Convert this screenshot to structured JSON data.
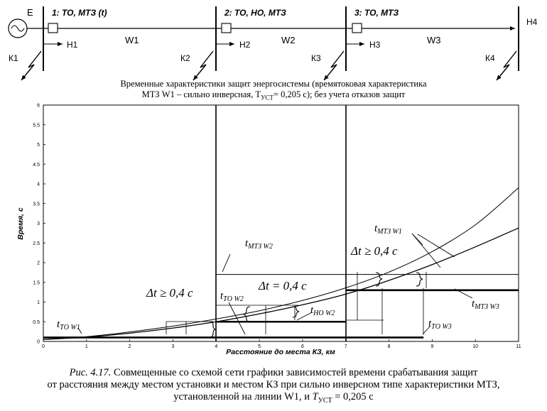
{
  "scheme": {
    "source_label": "E",
    "stations": [
      {
        "label": "1: ТО, МТЗ (t)",
        "load": "Н1"
      },
      {
        "label": "2: ТО, НО, МТЗ",
        "load": "Н2"
      },
      {
        "label": "3: ТО, МТЗ",
        "load": "Н3"
      }
    ],
    "end_load": "Н4",
    "lines": [
      "W1",
      "W2",
      "W3"
    ],
    "faults": [
      "К1",
      "К2",
      "К3",
      "К4"
    ]
  },
  "chart_title": {
    "line1": "Временные характеристики защит энергосистемы (времятоковая характеристика",
    "line2_a": "МТЗ W1 – сильно инверсная, T",
    "line2_sub": "УСТ",
    "line2_b": "= 0,205 с); без учета отказов защит"
  },
  "chart_data": {
    "type": "line",
    "xlabel": "Расстояние до места КЗ, км",
    "ylabel": "Время, с",
    "xlim": [
      0,
      11
    ],
    "ylim": [
      0,
      6
    ],
    "x_ticks": [
      "0",
      "1",
      "2",
      "3",
      "4",
      "5",
      "6",
      "7",
      "8",
      "9",
      "10",
      "11"
    ],
    "y_ticks": [
      "0",
      "0.5",
      "1",
      "1.5",
      "2",
      "2.5",
      "3",
      "3.5",
      "4",
      "4.5",
      "5",
      "5.5",
      "6"
    ],
    "grid": false,
    "station_boundaries": [
      4,
      7
    ],
    "series": [
      {
        "name": "t МТЗ W1",
        "x": [
          0,
          1,
          2,
          3,
          4,
          5,
          6,
          7,
          8,
          9,
          10,
          11
        ],
        "y": [
          0.05,
          0.12,
          0.24,
          0.39,
          0.57,
          0.78,
          1.04,
          1.36,
          1.76,
          2.28,
          2.96,
          3.9
        ]
      },
      {
        "name": "t МТЗ W2",
        "x": [
          0,
          1,
          2,
          3,
          4,
          5,
          6,
          7,
          8,
          9,
          10,
          11
        ],
        "y": [
          0.05,
          0.11,
          0.21,
          0.34,
          0.5,
          0.7,
          0.93,
          1.2,
          1.55,
          1.95,
          2.4,
          2.88
        ]
      },
      {
        "name": "t МТЗ W2",
        "x": [
          4,
          11
        ],
        "y": [
          1.7,
          1.7
        ]
      },
      {
        "name": "t МТЗ W3",
        "x": [
          7,
          11
        ],
        "y": [
          1.3,
          1.3
        ]
      },
      {
        "name": "t ТО W1",
        "x": [
          0,
          4
        ],
        "y": [
          0.1,
          0.1
        ]
      },
      {
        "name": "t ТО W2",
        "x": [
          4,
          7
        ],
        "y": [
          0.1,
          0.1
        ]
      },
      {
        "name": "t НО W2",
        "x": [
          4,
          7
        ],
        "y": [
          0.5,
          0.5
        ]
      },
      {
        "name": "t ТО W3",
        "x": [
          7,
          8.8
        ],
        "y": [
          0.1,
          0.1
        ]
      }
    ],
    "annotations": {
      "dt1": "Δt ≥ 0,4 с",
      "dt2": "Δt = 0,4 с",
      "dt3": "Δt ≥ 0,4 с",
      "t_mtz_w1": {
        "t": "t",
        "sub": "МТЗ W1"
      },
      "t_mtz_w2": {
        "t": "t",
        "sub": "МТЗ W2"
      },
      "t_mtz_w3": {
        "t": "t",
        "sub": "МТЗ W3"
      },
      "t_to_w1": {
        "t": "t",
        "sub": "ТО W1"
      },
      "t_to_w2": {
        "t": "t",
        "sub": "ТО W2"
      },
      "t_no_w2": {
        "t": "t",
        "sub": "НО W2"
      },
      "t_to_w3": {
        "t": "t",
        "sub": "ТО W3"
      }
    }
  },
  "caption": {
    "figno": "Рис. 4.17.",
    "line1": " Совмещенные со схемой сети графики зависимостей времени срабатывания защит",
    "line2": "от расстояния между местом установки и местом КЗ при сильно инверсном типе характеристики МТЗ,",
    "line3_a": "установленной на линии W1, и ",
    "line3_t": "T",
    "line3_sub": "УСТ",
    "line3_b": " = 0,205 с"
  }
}
